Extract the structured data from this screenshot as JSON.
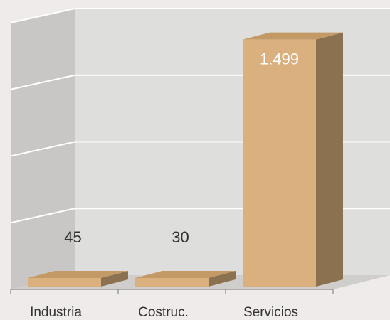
{
  "chart_data": {
    "type": "bar",
    "categories": [
      "Industria",
      "Costruc.",
      "Servicios"
    ],
    "values": [
      45,
      30,
      1499
    ],
    "data_labels": [
      "45",
      "30",
      "1.499"
    ],
    "ylim": [
      0,
      1600
    ],
    "grid": true,
    "three_d": true
  },
  "colors": {
    "background": "#efebea",
    "back_wall": "#dededd",
    "side_wall": "#c8c7c6",
    "floor": "#cfcecd",
    "gridline": "#ffffff",
    "bar_front": "#d9b07e",
    "bar_top": "#c39a65",
    "bar_side": "#8c7150",
    "label_dark": "#333333",
    "label_light": "#ffffff"
  }
}
